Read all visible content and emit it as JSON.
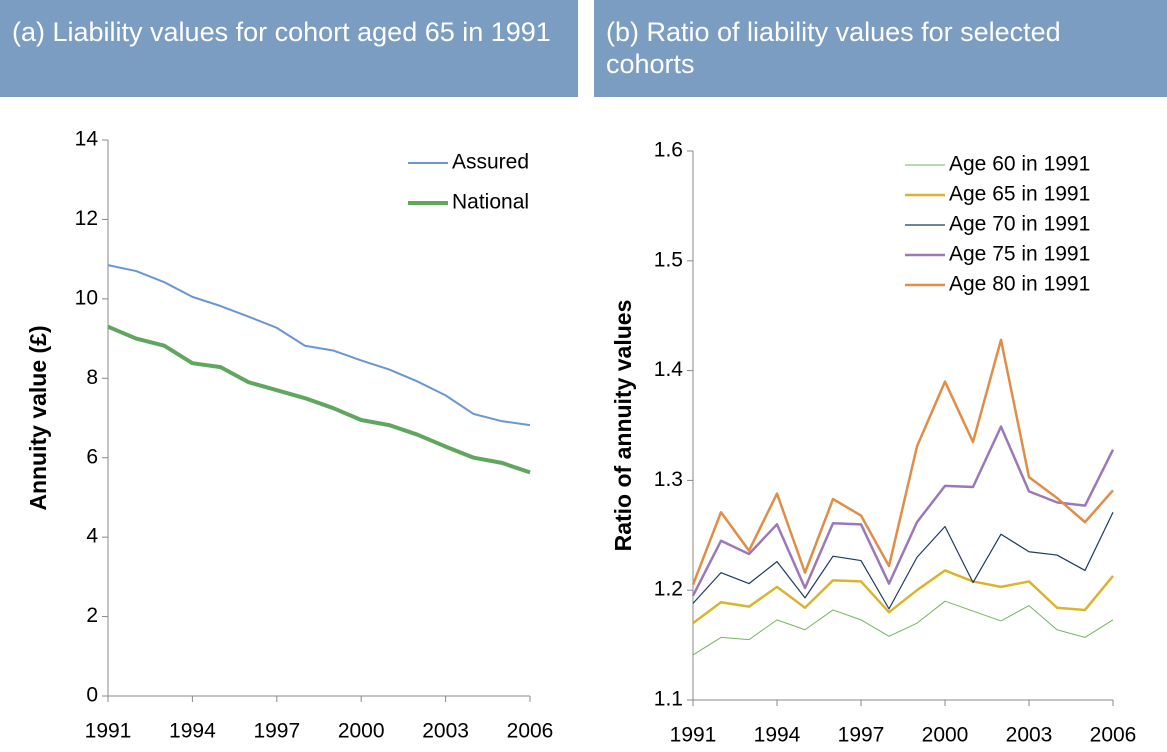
{
  "chart_data": [
    {
      "type": "line",
      "title": "(a) Liability values for cohort aged 65 in 1991",
      "y_label": "Annuity value (£)",
      "x": [
        1991,
        1992,
        1993,
        1994,
        1995,
        1996,
        1997,
        1998,
        1999,
        2000,
        2001,
        2002,
        2003,
        2004,
        2005,
        2006
      ],
      "xlim": [
        1991,
        2006
      ],
      "xticks": [
        1991,
        1994,
        1997,
        2000,
        2003,
        2006
      ],
      "ylim": [
        0,
        14
      ],
      "yticks": [
        0,
        2,
        4,
        6,
        8,
        10,
        12,
        14
      ],
      "grid": false,
      "legend": "upper right",
      "series": [
        {
          "name": "Assured",
          "color": "#6a97d0",
          "values": [
            10.85,
            10.7,
            10.42,
            10.05,
            9.82,
            9.55,
            9.27,
            8.82,
            8.7,
            8.45,
            8.22,
            7.92,
            7.57,
            7.1,
            6.92,
            6.82
          ]
        },
        {
          "name": "National",
          "color": "#5fa65f",
          "values": [
            9.3,
            9.0,
            8.82,
            8.38,
            8.28,
            7.9,
            7.7,
            7.5,
            7.25,
            6.95,
            6.82,
            6.58,
            6.28,
            6.0,
            5.87,
            5.63
          ]
        }
      ]
    },
    {
      "type": "line",
      "title": "(b) Ratio of liability values for selected cohorts",
      "y_label": "Ratio of annuity values",
      "x": [
        1991,
        1992,
        1993,
        1994,
        1995,
        1996,
        1997,
        1998,
        1999,
        2000,
        2001,
        2002,
        2003,
        2004,
        2005,
        2006
      ],
      "xlim": [
        1991,
        2006
      ],
      "xticks": [
        1991,
        1994,
        1997,
        2000,
        2003,
        2006
      ],
      "ylim": [
        1.1,
        1.6
      ],
      "yticks": [
        1.1,
        1.2,
        1.3,
        1.4,
        1.5,
        1.6
      ],
      "grid": false,
      "legend": "upper right",
      "series": [
        {
          "name": "Age 60 in 1991",
          "color": "#77b361",
          "values": [
            1.141,
            1.157,
            1.155,
            1.173,
            1.164,
            1.182,
            1.173,
            1.158,
            1.17,
            1.19,
            1.181,
            1.172,
            1.186,
            1.164,
            1.157,
            1.173
          ]
        },
        {
          "name": "Age 65 in 1991",
          "color": "#d9b52e",
          "values": [
            1.17,
            1.189,
            1.185,
            1.203,
            1.184,
            1.209,
            1.208,
            1.18,
            1.2,
            1.218,
            1.208,
            1.203,
            1.208,
            1.184,
            1.182,
            1.213
          ]
        },
        {
          "name": "Age 70 in 1991",
          "color": "#1f3a5f",
          "values": [
            1.188,
            1.216,
            1.206,
            1.226,
            1.193,
            1.231,
            1.227,
            1.183,
            1.23,
            1.258,
            1.207,
            1.251,
            1.235,
            1.232,
            1.218,
            1.271
          ]
        },
        {
          "name": "Age 75 in 1991",
          "color": "#9b78b8",
          "values": [
            1.195,
            1.245,
            1.233,
            1.26,
            1.202,
            1.261,
            1.26,
            1.206,
            1.262,
            1.295,
            1.294,
            1.349,
            1.29,
            1.28,
            1.277,
            1.328
          ]
        },
        {
          "name": "Age 80 in 1991",
          "color": "#e08d48",
          "values": [
            1.205,
            1.271,
            1.236,
            1.288,
            1.216,
            1.283,
            1.268,
            1.222,
            1.331,
            1.39,
            1.335,
            1.428,
            1.303,
            1.284,
            1.262,
            1.291
          ]
        }
      ]
    }
  ]
}
